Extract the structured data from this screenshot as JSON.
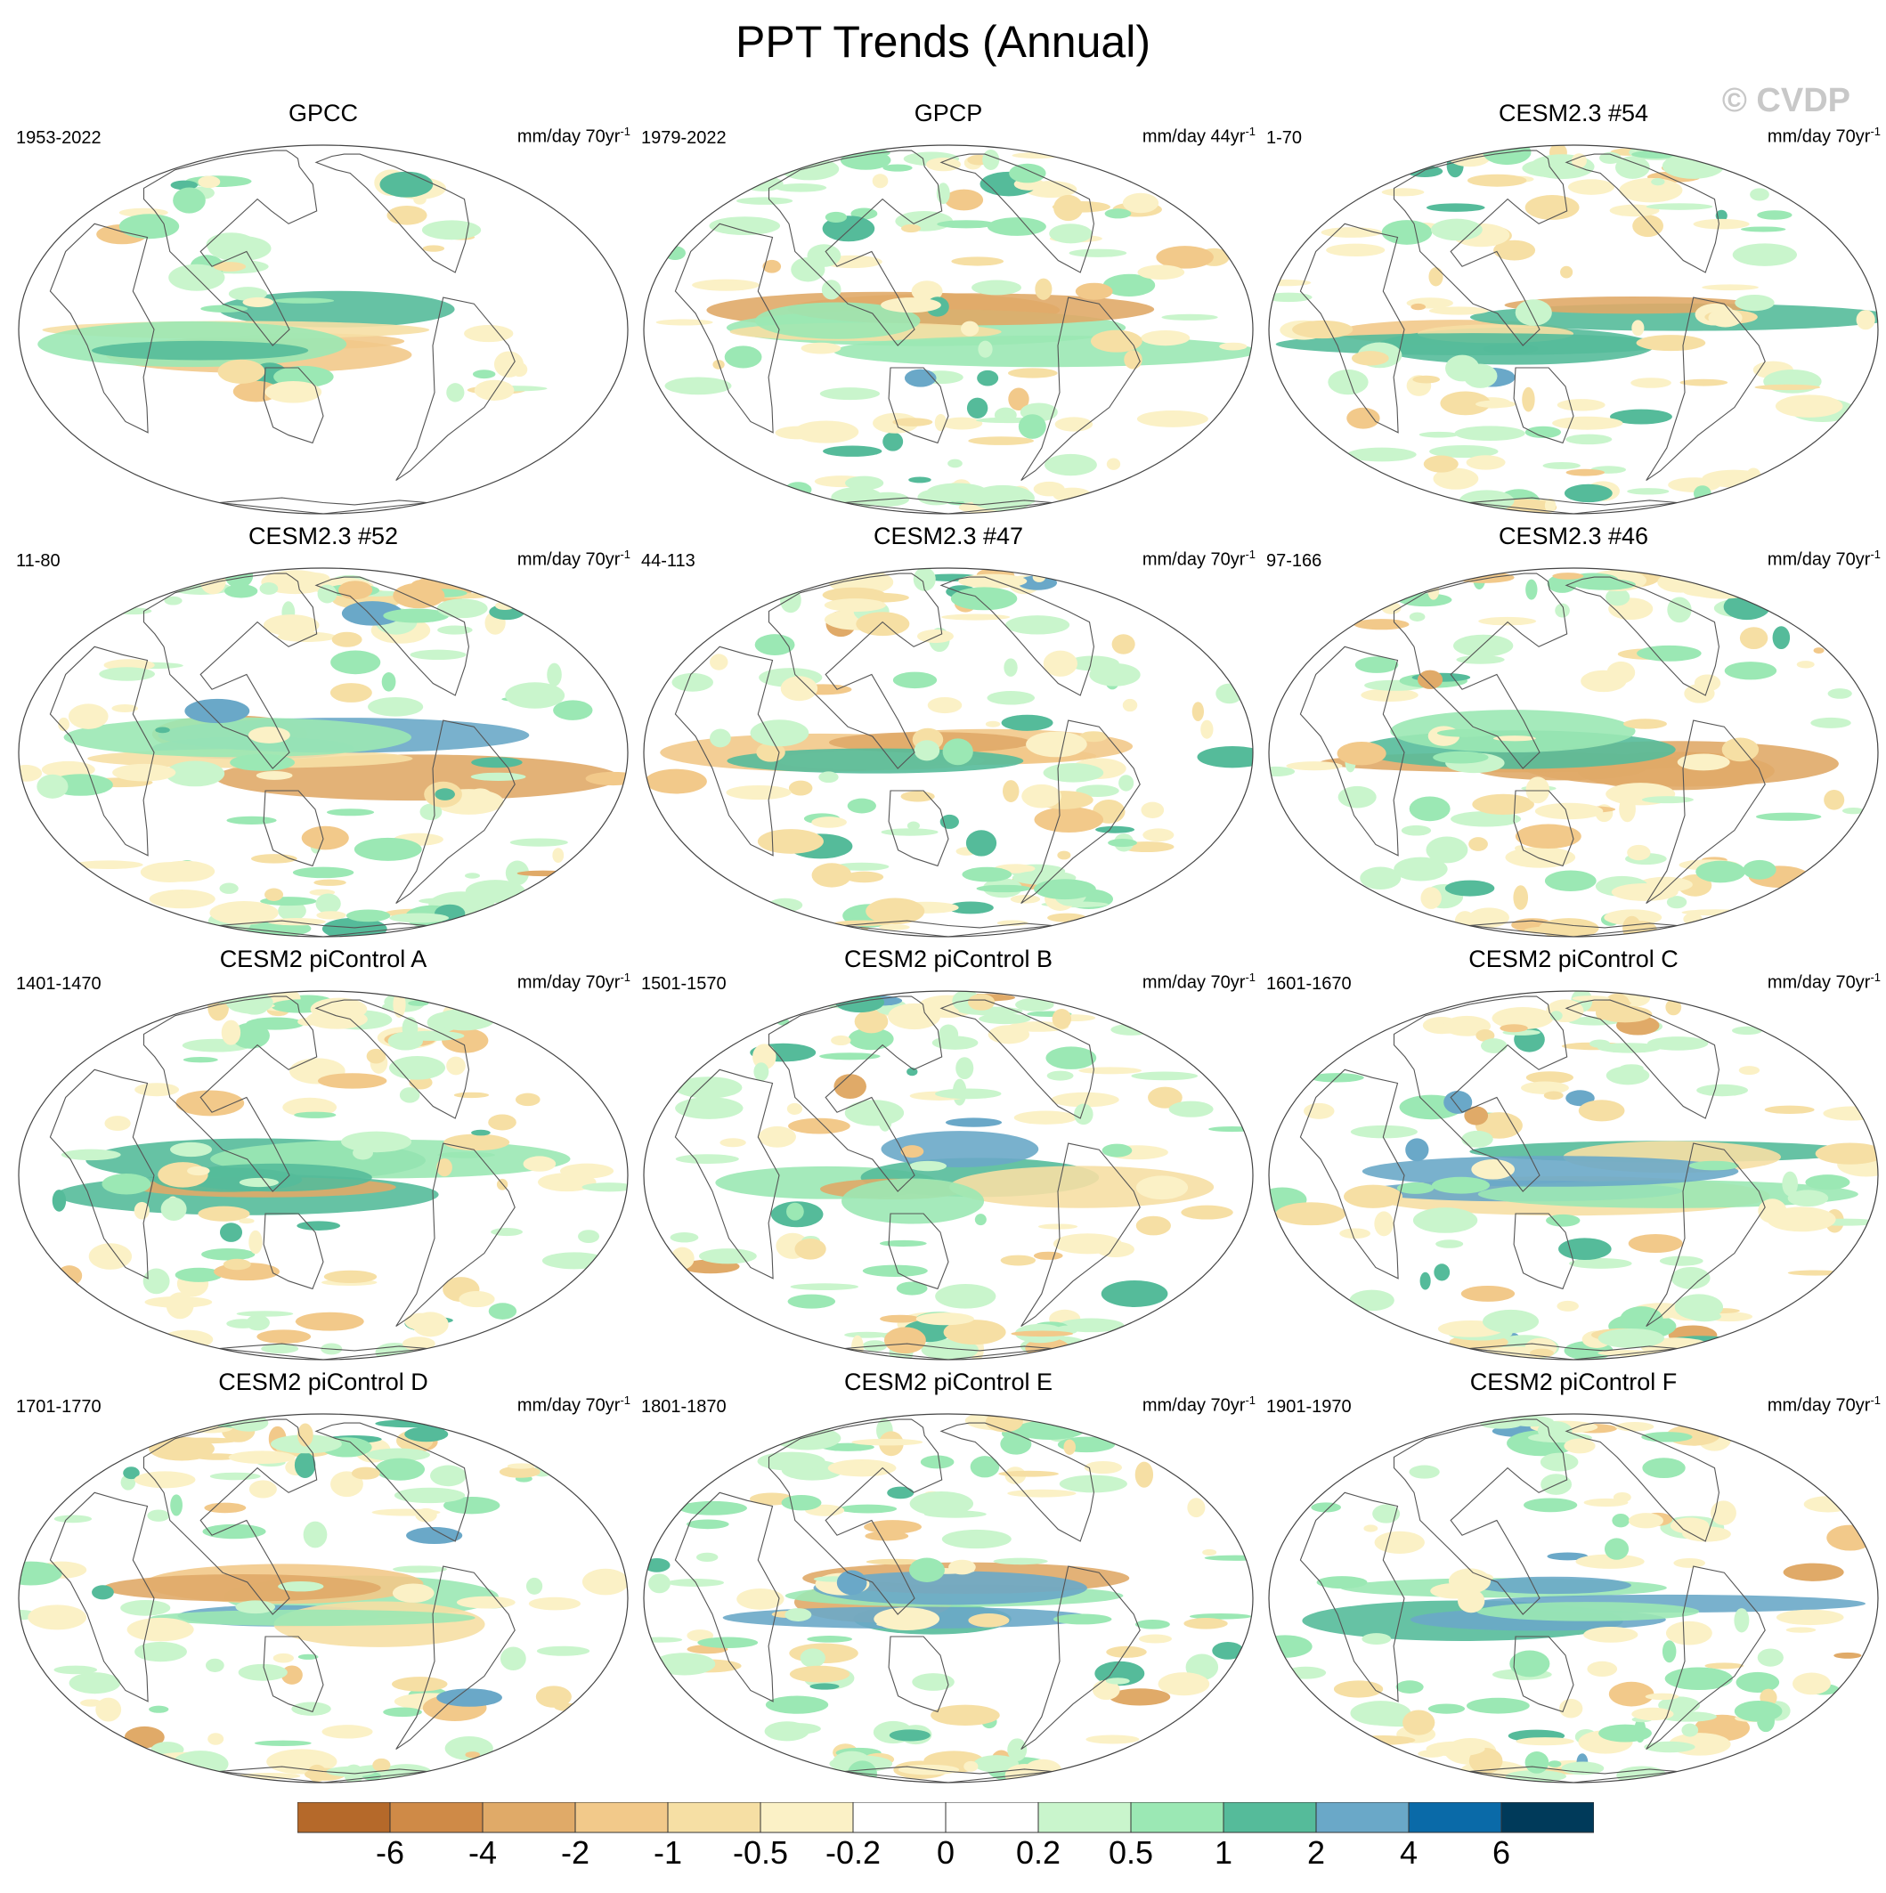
{
  "figure": {
    "title": "PPT Trends (Annual)",
    "watermark": "© CVDP"
  },
  "panels": [
    {
      "title": "GPCC",
      "period": "1953-2022",
      "units": "mm/day 70yr",
      "units_exp": "-1"
    },
    {
      "title": "GPCP",
      "period": "1979-2022",
      "units": "mm/day 44yr",
      "units_exp": "-1"
    },
    {
      "title": "CESM2.3 #54",
      "period": "1-70",
      "units": "mm/day 70yr",
      "units_exp": "-1"
    },
    {
      "title": "CESM2.3 #52",
      "period": "11-80",
      "units": "mm/day 70yr",
      "units_exp": "-1"
    },
    {
      "title": "CESM2.3 #47",
      "period": "44-113",
      "units": "mm/day 70yr",
      "units_exp": "-1"
    },
    {
      "title": "CESM2.3 #46",
      "period": "97-166",
      "units": "mm/day 70yr",
      "units_exp": "-1"
    },
    {
      "title": "CESM2 piControl A",
      "period": "1401-1470",
      "units": "mm/day 70yr",
      "units_exp": "-1"
    },
    {
      "title": "CESM2 piControl B",
      "period": "1501-1570",
      "units": "mm/day 70yr",
      "units_exp": "-1"
    },
    {
      "title": "CESM2 piControl C",
      "period": "1601-1670",
      "units": "mm/day 70yr",
      "units_exp": "-1"
    },
    {
      "title": "CESM2 piControl D",
      "period": "1701-1770",
      "units": "mm/day 70yr",
      "units_exp": "-1"
    },
    {
      "title": "CESM2 piControl E",
      "period": "1801-1870",
      "units": "mm/day 70yr",
      "units_exp": "-1"
    },
    {
      "title": "CESM2 piControl F",
      "period": "1901-1970",
      "units": "mm/day 70yr",
      "units_exp": "-1"
    }
  ],
  "colorbar": {
    "labels": [
      "-6",
      "-4",
      "-2",
      "-1",
      "-0.5",
      "-0.2",
      "0",
      "0.2",
      "0.5",
      "1",
      "2",
      "4",
      "6"
    ],
    "colors": [
      "#b5692a",
      "#cf8a47",
      "#e0aa68",
      "#f2c98a",
      "#f6dfa4",
      "#fbf1c6",
      "#ffffff",
      "#ffffff",
      "#c9f5cc",
      "#9be8b4",
      "#55bb9a",
      "#6aa8c8",
      "#0a6aa8",
      "#003a5a"
    ]
  },
  "map_style": {
    "wet_colors": [
      "#c9f5cc",
      "#9be8b4",
      "#55bb9a",
      "#6aa8c8"
    ],
    "dry_colors": [
      "#fbf1c6",
      "#f6dfa4",
      "#f2c98a",
      "#e0aa68"
    ]
  }
}
